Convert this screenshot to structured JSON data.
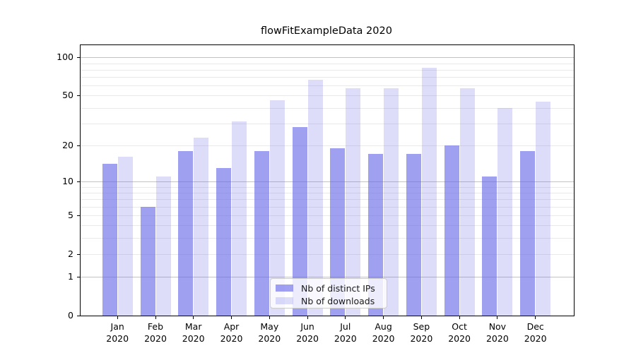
{
  "chart_data": {
    "type": "bar",
    "title": "flowFitExampleData 2020",
    "categories": [
      "Jan",
      "Feb",
      "Mar",
      "Apr",
      "May",
      "Jun",
      "Jul",
      "Aug",
      "Sep",
      "Oct",
      "Nov",
      "Dec"
    ],
    "year_label": "2020",
    "series": [
      {
        "name": "Nb of distinct IPs",
        "color": "rgba(101,101,233,0.62)",
        "values": [
          14,
          6,
          18,
          13,
          18,
          28,
          19,
          17,
          17,
          20,
          11,
          18
        ]
      },
      {
        "name": "Nb of downloads",
        "color": "rgba(101,101,233,0.22)",
        "values": [
          16,
          11,
          23,
          31,
          46,
          67,
          57,
          57,
          83,
          57,
          40,
          45
        ]
      }
    ],
    "xlabel": "",
    "ylabel": "",
    "yscale": "log10(1+y)",
    "ylim": [
      0,
      123
    ],
    "yticks": [
      0,
      1,
      2,
      5,
      10,
      20,
      50,
      100
    ],
    "grid": {
      "on": true,
      "major_ticks": [
        1,
        10,
        100
      ],
      "minor_ticks": [
        2,
        3,
        4,
        5,
        6,
        7,
        8,
        9,
        20,
        30,
        40,
        50,
        60,
        70,
        80,
        90
      ],
      "major_color": "#c3c3c3",
      "minor_color": "#e9e9e9"
    },
    "legend": {
      "position": "bottom-center",
      "entries": [
        "Nb of distinct IPs",
        "Nb of downloads"
      ]
    }
  }
}
